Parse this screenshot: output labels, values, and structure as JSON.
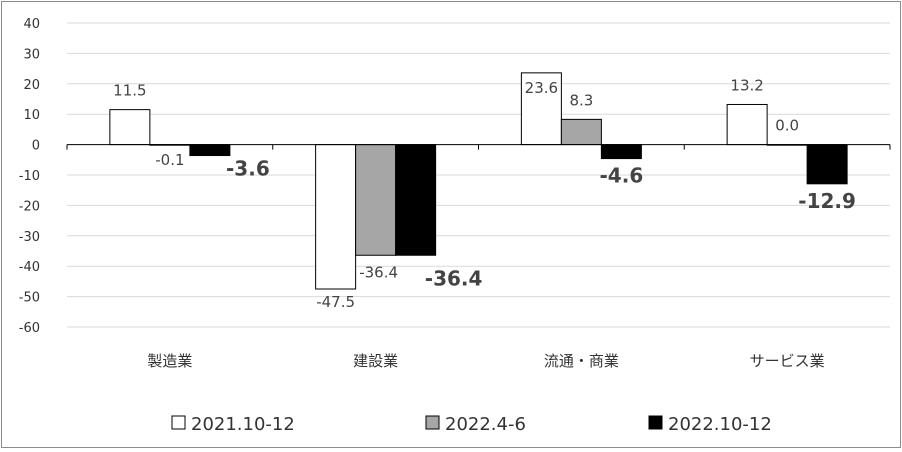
{
  "chart_data": {
    "type": "bar",
    "categories": [
      "製造業",
      "建設業",
      "流通・商業",
      "サービス業"
    ],
    "series": [
      {
        "name": "2021.10-12",
        "values": [
          11.5,
          -47.5,
          23.6,
          13.2
        ],
        "labels": [
          "11.5",
          "-47.5",
          "23.6",
          "13.2"
        ],
        "color": "#ffffff",
        "label_weight": "normal"
      },
      {
        "name": "2022.4-6",
        "values": [
          -0.1,
          -36.4,
          8.3,
          0.0
        ],
        "labels": [
          "-0.1",
          "-36.4",
          "8.3",
          "0.0"
        ],
        "color": "#a6a6a6",
        "label_weight": "normal"
      },
      {
        "name": "2022.10-12",
        "values": [
          -3.6,
          -36.4,
          -4.6,
          -12.9
        ],
        "labels": [
          "-3.6",
          "-36.4",
          "-4.6",
          "-12.9"
        ],
        "color": "#000000",
        "label_weight": "bold"
      }
    ],
    "ylim": [
      -60,
      40
    ],
    "yticks": [
      "40",
      "30",
      "20",
      "10",
      "0",
      "-10",
      "-20",
      "-30",
      "-40",
      "-50",
      "-60"
    ],
    "grid": true,
    "legend_position": "bottom"
  }
}
